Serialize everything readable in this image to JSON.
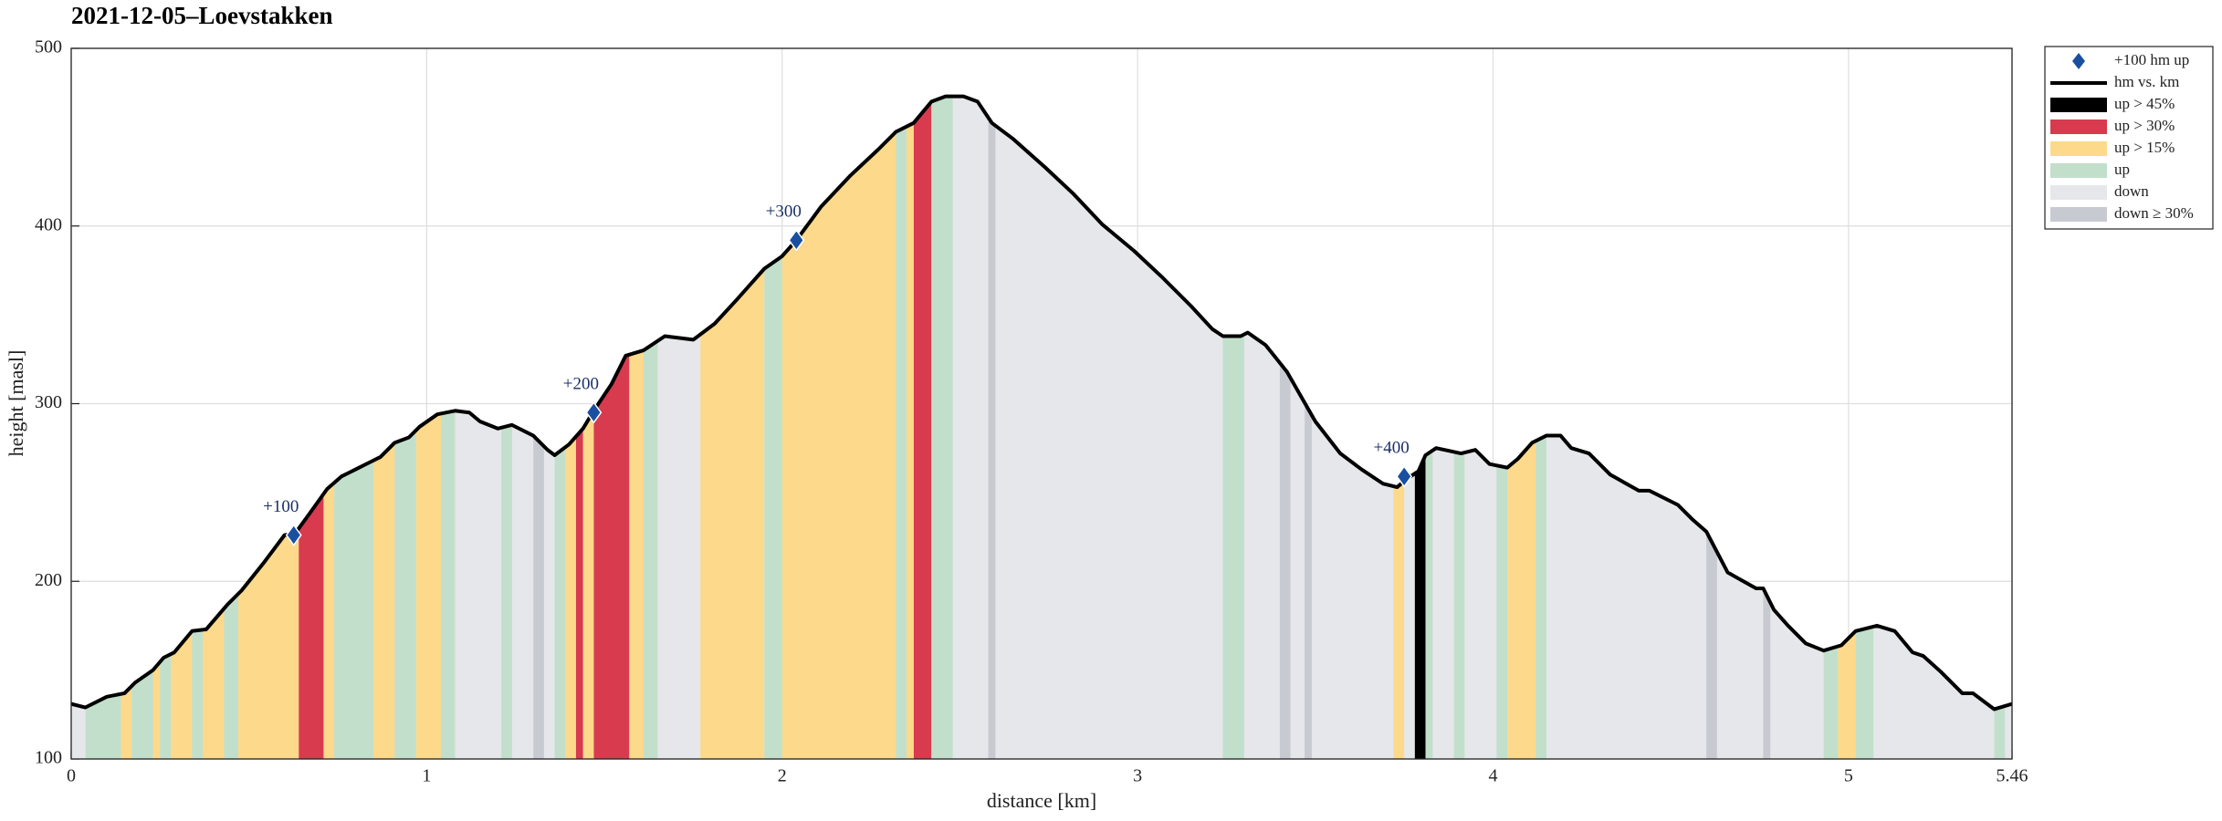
{
  "chart_data": {
    "type": "profile",
    "title": "2021-12-05–Loevstakken",
    "xlabel": "distance [km]",
    "ylabel": "height [masl]",
    "xlim": [
      0,
      5.46
    ],
    "ylim": [
      100,
      500
    ],
    "xticks": [
      0,
      1,
      2,
      3,
      4,
      5,
      5.46
    ],
    "yticks": [
      100,
      200,
      300,
      400,
      500
    ],
    "grid": true,
    "legend": "outside-upper-right",
    "profile": {
      "name": "hm vs. km",
      "color": "#000000",
      "x": [
        0,
        0.04,
        0.1,
        0.15,
        0.18,
        0.23,
        0.26,
        0.29,
        0.34,
        0.38,
        0.44,
        0.48,
        0.54,
        0.6,
        0.63,
        0.67,
        0.72,
        0.76,
        0.8,
        0.84,
        0.87,
        0.91,
        0.95,
        0.98,
        1.03,
        1.08,
        1.12,
        1.15,
        1.2,
        1.24,
        1.3,
        1.34,
        1.36,
        1.4,
        1.44,
        1.47,
        1.52,
        1.56,
        1.61,
        1.67,
        1.75,
        1.81,
        1.87,
        1.95,
        2.0,
        2.04,
        2.11,
        2.19,
        2.27,
        2.32,
        2.37,
        2.42,
        2.46,
        2.51,
        2.55,
        2.59,
        2.65,
        2.74,
        2.82,
        2.9,
        2.99,
        3.07,
        3.15,
        3.21,
        3.24,
        3.29,
        3.31,
        3.36,
        3.42,
        3.46,
        3.5,
        3.57,
        3.63,
        3.69,
        3.73,
        3.76,
        3.79,
        3.81,
        3.84,
        3.91,
        3.95,
        3.99,
        4.04,
        4.07,
        4.11,
        4.15,
        4.19,
        4.22,
        4.27,
        4.33,
        4.41,
        4.44,
        4.52,
        4.56,
        4.6,
        4.66,
        4.74,
        4.76,
        4.79,
        4.83,
        4.88,
        4.93,
        4.98,
        5.02,
        5.08,
        5.13,
        5.18,
        5.21,
        5.26,
        5.32,
        5.35,
        5.41,
        5.46
      ],
      "values": [
        131,
        129,
        135,
        137,
        143,
        150,
        157,
        160,
        172,
        173,
        187,
        195,
        210,
        226,
        227,
        238,
        252,
        259,
        263,
        267,
        270,
        278,
        281,
        287,
        294,
        296,
        295,
        290,
        286,
        288,
        282,
        274,
        271,
        277,
        286,
        296,
        311,
        327,
        330,
        338,
        336,
        345,
        358,
        376,
        383,
        392,
        411,
        428,
        443,
        453,
        458,
        470,
        473,
        473,
        470,
        458,
        449,
        433,
        418,
        401,
        386,
        371,
        355,
        342,
        338,
        338,
        340,
        333,
        318,
        304,
        290,
        272,
        263,
        255,
        253,
        258,
        262,
        271,
        275,
        272,
        274,
        266,
        264,
        269,
        278,
        282,
        282,
        275,
        272,
        260,
        251,
        251,
        243,
        235,
        228,
        205,
        196,
        196,
        184,
        175,
        165,
        161,
        164,
        172,
        175,
        172,
        160,
        158,
        149,
        137,
        137,
        128,
        131
      ]
    },
    "bands": [
      {
        "name": "up > 45%",
        "color": "#000000",
        "ranges": [
          [
            3.78,
            3.81
          ]
        ]
      },
      {
        "name": "up > 30%",
        "color": "#d83a4e",
        "ranges": [
          [
            0.64,
            0.71
          ],
          [
            1.42,
            1.44
          ],
          [
            1.47,
            1.57
          ],
          [
            2.37,
            2.42
          ]
        ]
      },
      {
        "name": "up > 15%",
        "color": "#fcd98b",
        "ranges": [
          [
            0.14,
            0.17
          ],
          [
            0.23,
            0.25
          ],
          [
            0.28,
            0.34
          ],
          [
            0.37,
            0.43
          ],
          [
            0.47,
            0.64
          ],
          [
            0.71,
            0.74
          ],
          [
            0.85,
            0.91
          ],
          [
            0.97,
            1.04
          ],
          [
            1.39,
            1.42
          ],
          [
            1.44,
            1.47
          ],
          [
            1.57,
            1.61
          ],
          [
            1.77,
            1.95
          ],
          [
            2.0,
            2.32
          ],
          [
            2.35,
            2.37
          ],
          [
            3.72,
            3.75
          ],
          [
            4.04,
            4.12
          ],
          [
            4.97,
            5.02
          ]
        ]
      },
      {
        "name": "up",
        "color": "#c2dfcb",
        "ranges": [
          [
            0.04,
            0.14
          ],
          [
            0.17,
            0.23
          ],
          [
            0.25,
            0.28
          ],
          [
            0.34,
            0.37
          ],
          [
            0.43,
            0.47
          ],
          [
            0.74,
            0.85
          ],
          [
            0.91,
            0.97
          ],
          [
            1.04,
            1.08
          ],
          [
            1.21,
            1.24
          ],
          [
            1.36,
            1.39
          ],
          [
            1.61,
            1.65
          ],
          [
            1.95,
            2.0
          ],
          [
            2.32,
            2.35
          ],
          [
            2.42,
            2.48
          ],
          [
            3.24,
            3.3
          ],
          [
            3.81,
            3.83
          ],
          [
            3.89,
            3.92
          ],
          [
            4.01,
            4.04
          ],
          [
            4.12,
            4.15
          ],
          [
            4.93,
            4.97
          ],
          [
            5.02,
            5.07
          ],
          [
            5.41,
            5.44
          ]
        ]
      },
      {
        "name": "down",
        "color": "#e6e7ea"
      },
      {
        "name": "down ≥ 30%",
        "color": "#c8cad2",
        "ranges": [
          [
            1.3,
            1.33
          ],
          [
            2.58,
            2.6
          ],
          [
            3.4,
            3.43
          ],
          [
            3.47,
            3.49
          ],
          [
            4.6,
            4.63
          ],
          [
            4.76,
            4.78
          ]
        ]
      }
    ],
    "markers": {
      "name": "+100 hm up",
      "color": "#1a4fa0",
      "x": [
        0.626,
        1.47,
        2.04,
        3.75
      ],
      "values": [
        226,
        295,
        392,
        259
      ],
      "labels": [
        "+100",
        "+200",
        "+300",
        "+400"
      ]
    }
  }
}
